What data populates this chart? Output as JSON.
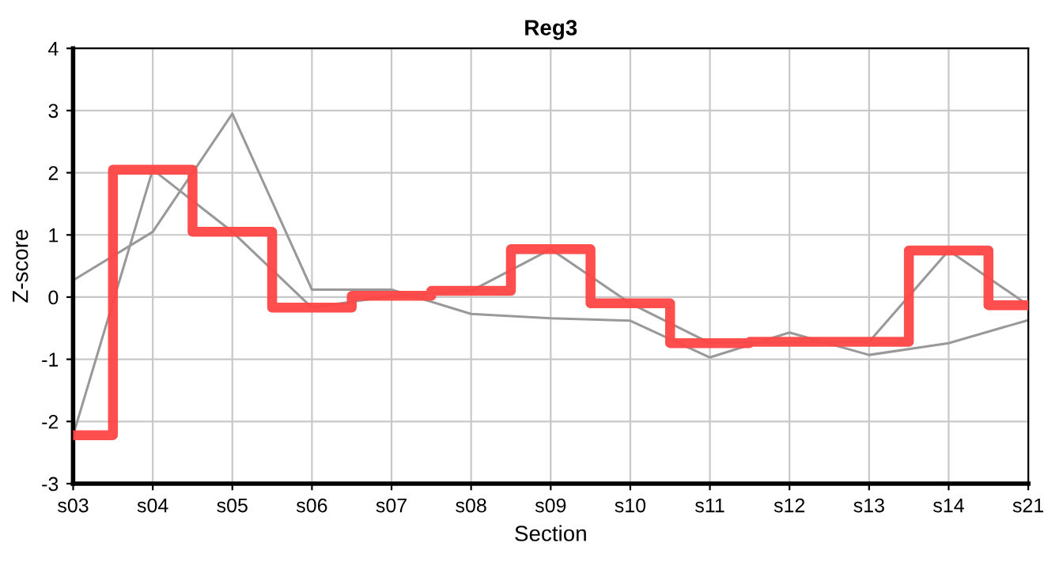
{
  "chart_data": {
    "type": "line",
    "title": "Reg3",
    "xlabel": "Section",
    "ylabel": "Z-score",
    "categories": [
      "s03",
      "s04",
      "s05",
      "s06",
      "s07",
      "s08",
      "s09",
      "s10",
      "s11",
      "s12",
      "s13",
      "s14",
      "s21"
    ],
    "series": [
      {
        "color": "#999999",
        "values": [
          0.27,
          1.05,
          2.95,
          0.12,
          0.12,
          -0.27,
          -0.34,
          -0.38,
          -0.97,
          -0.57,
          -0.93,
          -0.74,
          -0.37
        ]
      },
      {
        "color": "#999999",
        "values": [
          -2.22,
          2.05,
          1.05,
          -0.17,
          0.02,
          0.1,
          0.77,
          -0.1,
          -0.74,
          -0.72,
          -0.72,
          0.75,
          -0.13
        ]
      },
      {
        "type": "step",
        "color": "#ff4444",
        "values": [
          -2.22,
          2.05,
          1.05,
          -0.17,
          0.02,
          0.1,
          0.77,
          -0.1,
          -0.74,
          -0.72,
          -0.72,
          0.75,
          -0.13
        ]
      }
    ],
    "ylim": [
      -3,
      4
    ],
    "yticks": [
      -3,
      -2,
      -1,
      0,
      1,
      2,
      3,
      4
    ],
    "grid": true,
    "marker": "none",
    "line_style": "solid"
  }
}
